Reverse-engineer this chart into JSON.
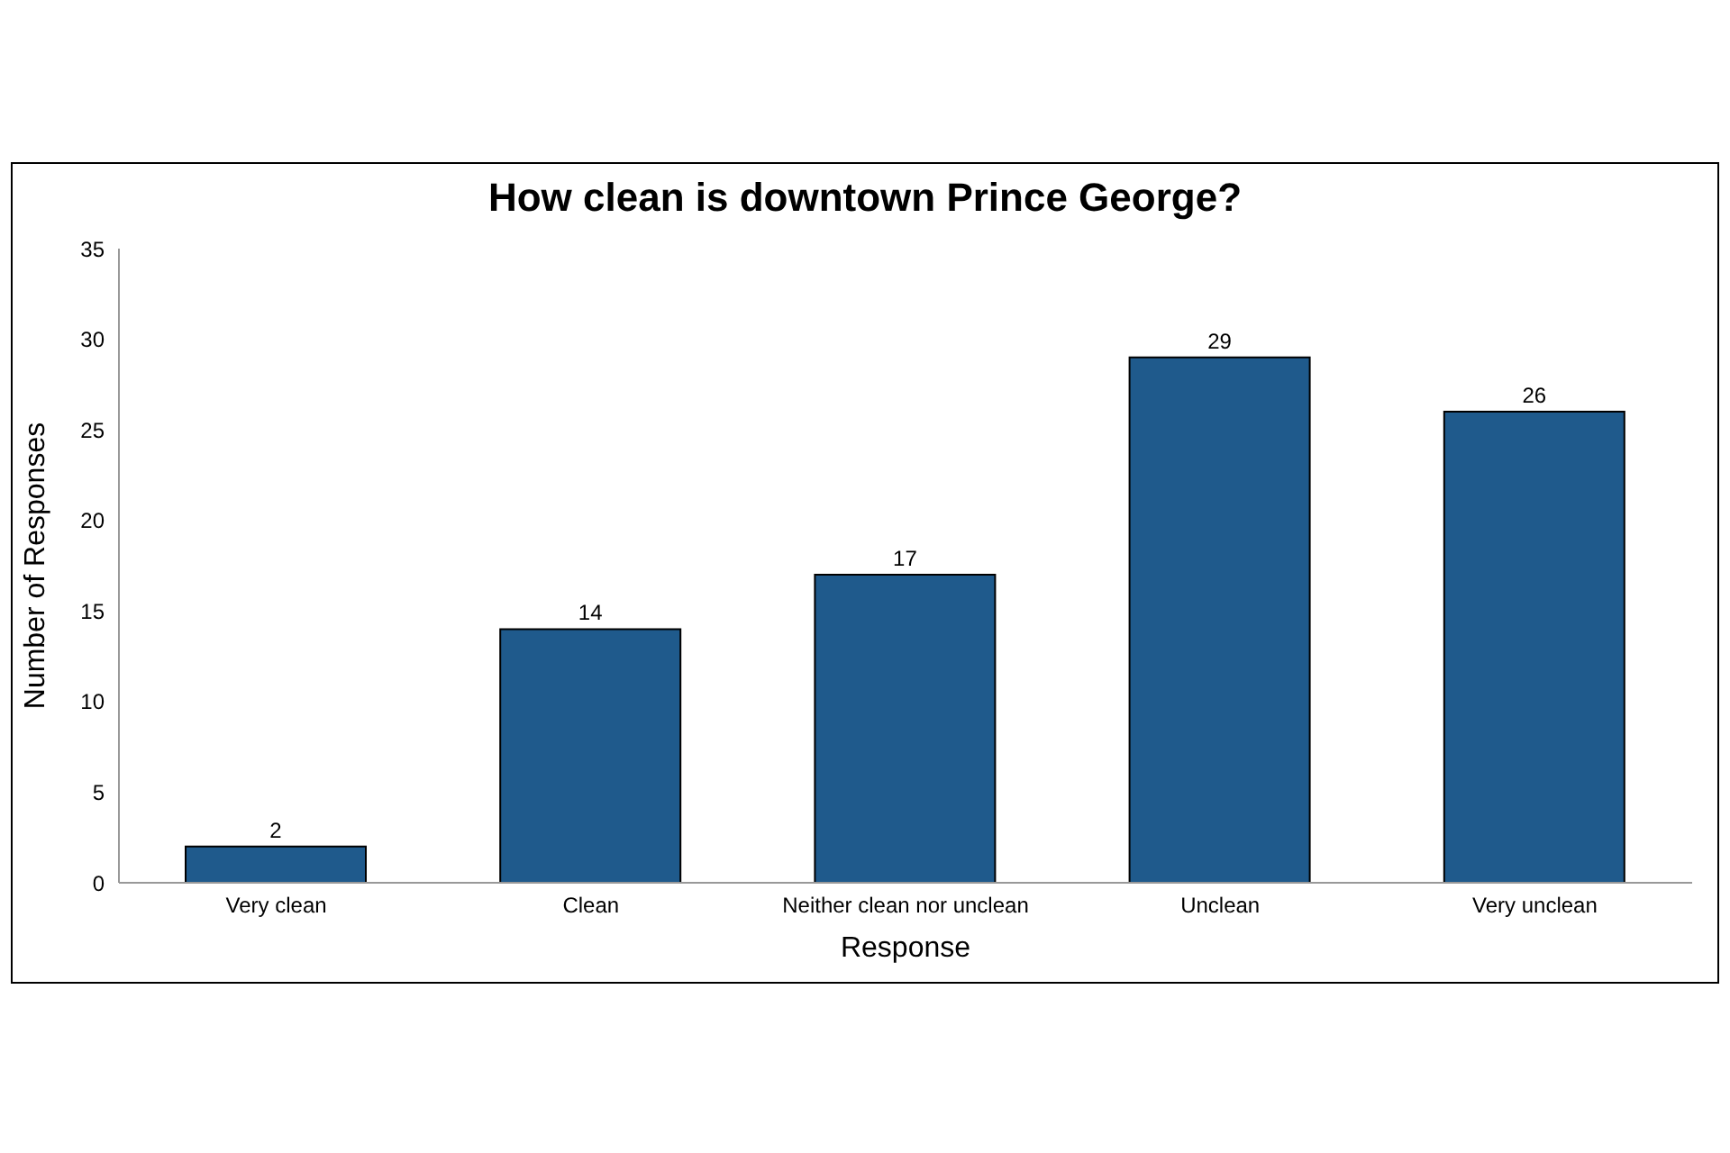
{
  "chart_data": {
    "type": "bar",
    "title": "How clean is downtown Prince George?",
    "xlabel": "Response",
    "ylabel": "Number of Responses",
    "categories": [
      "Very clean",
      "Clean",
      "Neither clean nor unclean",
      "Unclean",
      "Very unclean"
    ],
    "values": [
      2,
      14,
      17,
      29,
      26
    ],
    "color": "#1f5a8c",
    "ylim": [
      0,
      35
    ],
    "yticks": [
      0,
      5,
      10,
      15,
      20,
      25,
      30,
      35
    ],
    "grid": false,
    "data_labels": true
  }
}
